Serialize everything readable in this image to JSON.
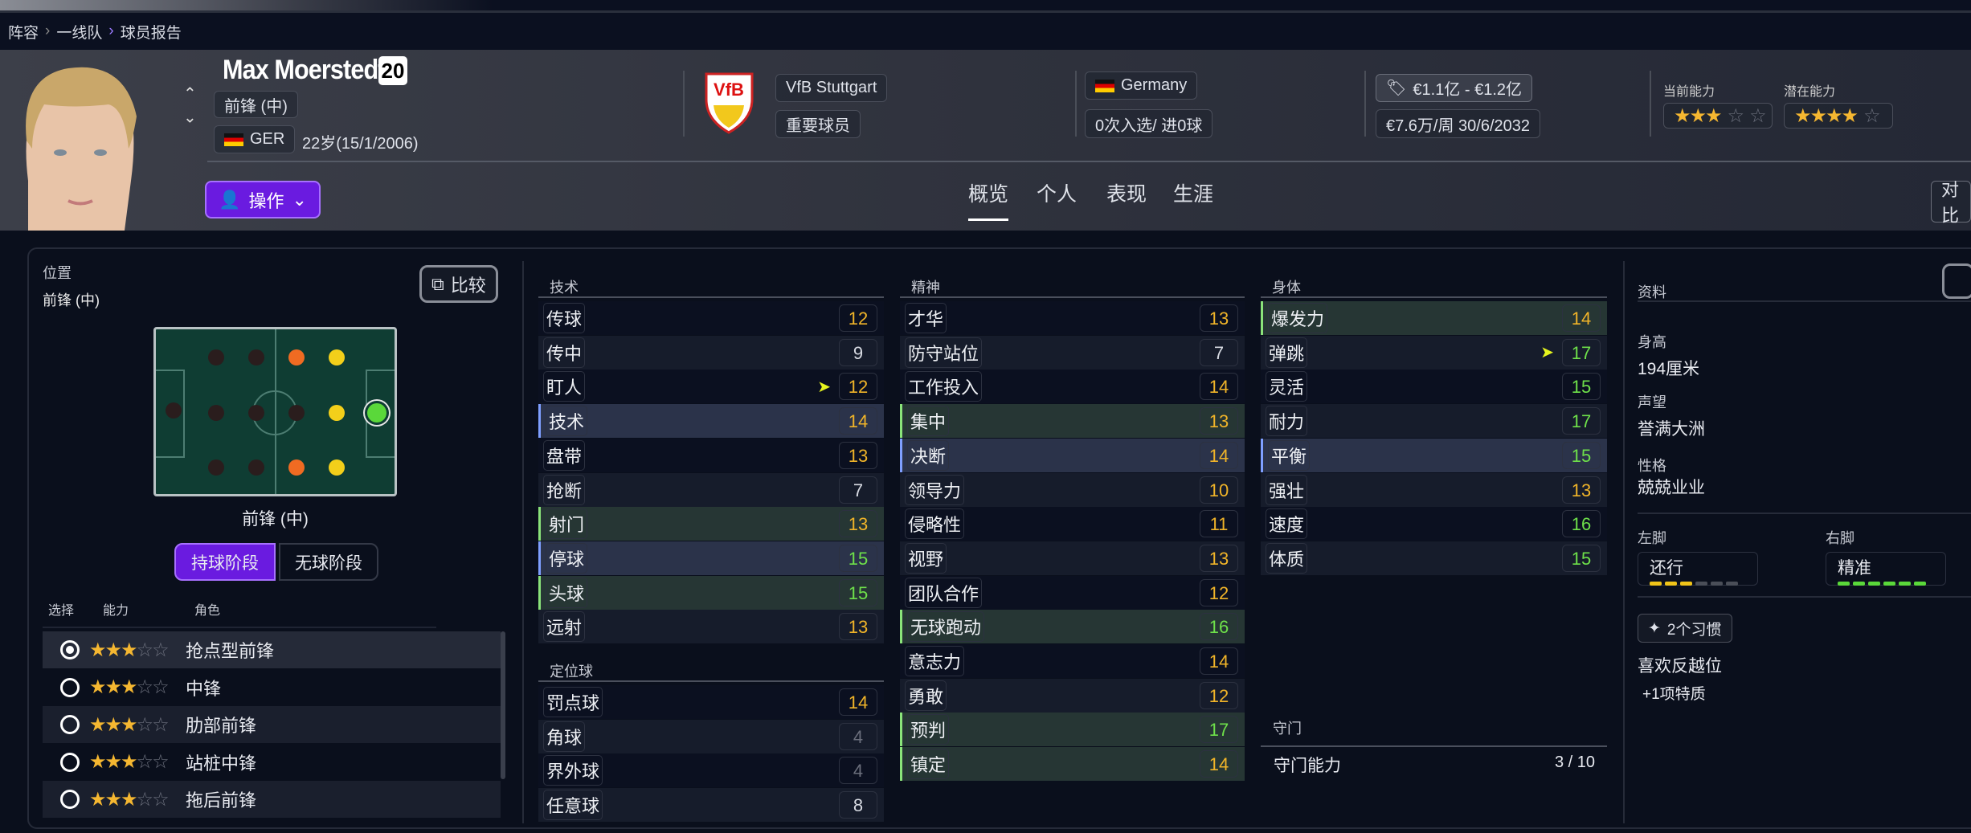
{
  "breadcrumb": [
    "阵容",
    "一线队",
    "球员报告"
  ],
  "player": {
    "name": "Max Moerstedt",
    "number": "20",
    "position": "前锋 (中)",
    "nationality_code": "GER",
    "age_dob": "22岁(15/1/2006)",
    "club": "VfB Stuttgart",
    "squad_status": "重要球员",
    "nation": "Germany",
    "caps_goals": "0次入选/ 进0球",
    "value": "€1.1亿 - €1.2亿",
    "wage_contract": "€7.6万/周 30/6/2032",
    "current_ability_label": "当前能力",
    "current_ability_stars": 3,
    "potential_ability_label": "潜在能力",
    "potential_ability_stars": 4
  },
  "actions_label": "操作",
  "tabs": [
    "概览",
    "个人",
    "表现",
    "生涯"
  ],
  "compare_right_label": "对比",
  "position_panel": {
    "title": "位置",
    "position_value": "前锋 (中)",
    "compare_label": "比较",
    "pitch_label": "前锋 (中)",
    "phase_tabs": [
      "持球阶段",
      "无球阶段"
    ],
    "table_headers": [
      "选择",
      "能力",
      "角色"
    ],
    "roles": [
      {
        "name": "抢点型前锋",
        "stars": 3,
        "selected": true
      },
      {
        "name": "中锋",
        "stars": 3,
        "selected": false
      },
      {
        "name": "肋部前锋",
        "stars": 3,
        "selected": false
      },
      {
        "name": "站桩中锋",
        "stars": 3,
        "selected": false
      },
      {
        "name": "拖后前锋",
        "stars": 3,
        "selected": false
      }
    ]
  },
  "attributes": {
    "technical": {
      "title": "技术",
      "items": [
        {
          "name": "传球",
          "value": 12
        },
        {
          "name": "传中",
          "value": 9
        },
        {
          "name": "盯人",
          "value": 12,
          "arrow": true
        },
        {
          "name": "技术",
          "value": 14,
          "hl": "blue"
        },
        {
          "name": "盘带",
          "value": 13
        },
        {
          "name": "抢断",
          "value": 7
        },
        {
          "name": "射门",
          "value": 13,
          "hl": "green"
        },
        {
          "name": "停球",
          "value": 15,
          "hl": "blue"
        },
        {
          "name": "头球",
          "value": 15,
          "hl": "green"
        },
        {
          "name": "远射",
          "value": 13
        }
      ]
    },
    "set_pieces": {
      "title": "定位球",
      "items": [
        {
          "name": "罚点球",
          "value": 14
        },
        {
          "name": "角球",
          "value": 4
        },
        {
          "name": "界外球",
          "value": 4
        },
        {
          "name": "任意球",
          "value": 8
        }
      ]
    },
    "mental": {
      "title": "精神",
      "items": [
        {
          "name": "才华",
          "value": 13
        },
        {
          "name": "防守站位",
          "value": 7
        },
        {
          "name": "工作投入",
          "value": 14
        },
        {
          "name": "集中",
          "value": 13,
          "hl": "green"
        },
        {
          "name": "决断",
          "value": 14,
          "hl": "blue"
        },
        {
          "name": "领导力",
          "value": 10
        },
        {
          "name": "侵略性",
          "value": 11
        },
        {
          "name": "视野",
          "value": 13
        },
        {
          "name": "团队合作",
          "value": 12
        },
        {
          "name": "无球跑动",
          "value": 16,
          "hl": "green"
        },
        {
          "name": "意志力",
          "value": 14
        },
        {
          "name": "勇敢",
          "value": 12
        },
        {
          "name": "预判",
          "value": 17,
          "hl": "green"
        },
        {
          "name": "镇定",
          "value": 14,
          "hl": "green"
        }
      ]
    },
    "physical": {
      "title": "身体",
      "items": [
        {
          "name": "爆发力",
          "value": 14,
          "hl": "green"
        },
        {
          "name": "弹跳",
          "value": 17,
          "arrow": true
        },
        {
          "name": "灵活",
          "value": 15
        },
        {
          "name": "耐力",
          "value": 17
        },
        {
          "name": "平衡",
          "value": 15,
          "hl": "blue"
        },
        {
          "name": "强壮",
          "value": 13
        },
        {
          "name": "速度",
          "value": 16
        },
        {
          "name": "体质",
          "value": 15
        }
      ]
    },
    "goalkeeping": {
      "title": "守门",
      "label": "守门能力",
      "value": "3 / 10"
    }
  },
  "info": {
    "title": "资料",
    "height_label": "身高",
    "height": "194厘米",
    "reputation_label": "声望",
    "reputation": "誉满大洲",
    "personality_label": "性格",
    "personality": "兢兢业业",
    "left_foot_label": "左脚",
    "left_foot": "还行",
    "left_foot_level": 3,
    "right_foot_label": "右脚",
    "right_foot": "精准",
    "right_foot_level": 6,
    "habits": "2个习惯",
    "trait": "喜欢反越位",
    "more_traits": "+1项特质"
  },
  "colors": {
    "accent": "#6a1be0",
    "high": "#6ee04a",
    "mid": "#f0b429",
    "low": "#d8dbe3",
    "dim": "#6b6f7c"
  }
}
